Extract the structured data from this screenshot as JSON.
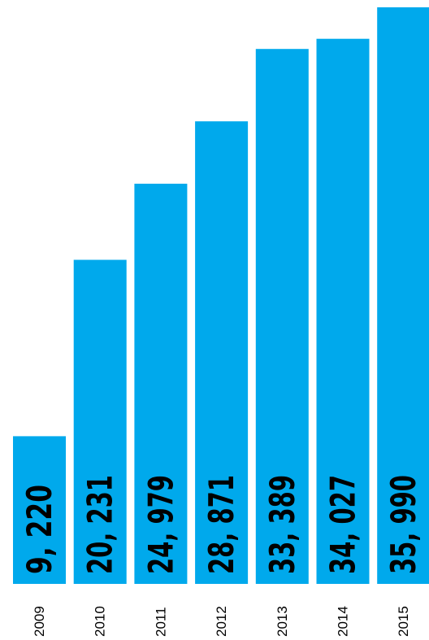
{
  "chart_data": {
    "type": "bar",
    "categories": [
      "2009",
      "2010",
      "2011",
      "2012",
      "2013",
      "2014",
      "2015"
    ],
    "values": [
      9220,
      20231,
      24979,
      28871,
      33389,
      34027,
      35990
    ],
    "value_labels": [
      "9, 220",
      "20, 231",
      "24, 979",
      "28, 871",
      "33, 389",
      "34, 027",
      "35, 990"
    ],
    "title": "",
    "xlabel": "",
    "ylabel": "",
    "ylim": [
      0,
      35990
    ],
    "grid": false,
    "bar_color": "#00a9ec"
  }
}
